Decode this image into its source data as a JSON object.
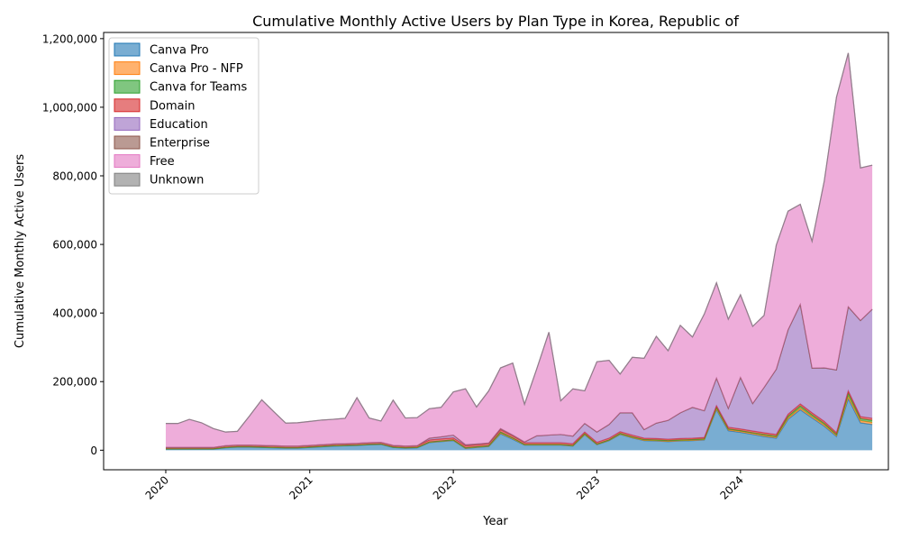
{
  "chart_data": {
    "type": "area",
    "stacked": true,
    "title": "Cumulative Monthly Active Users by Plan Type in Korea, Republic of",
    "xlabel": "Year",
    "ylabel": "Cumulative Monthly Active Users",
    "xlim": [
      "2019-07-27",
      "2025-01-11"
    ],
    "ylim": [
      -57000,
      1218000
    ],
    "x_ticks": [
      {
        "value": "2020-01-01",
        "label": "2020"
      },
      {
        "value": "2021-01-01",
        "label": "2021"
      },
      {
        "value": "2022-01-01",
        "label": "2022"
      },
      {
        "value": "2023-01-01",
        "label": "2023"
      },
      {
        "value": "2024-01-01",
        "label": "2024"
      }
    ],
    "y_ticks": [
      {
        "value": 0,
        "label": "0"
      },
      {
        "value": 200000,
        "label": "200,000"
      },
      {
        "value": 400000,
        "label": "400,000"
      },
      {
        "value": 600000,
        "label": "600,000"
      },
      {
        "value": 800000,
        "label": "800,000"
      },
      {
        "value": 1000000,
        "label": "1,000,000"
      },
      {
        "value": 1200000,
        "label": "1,200,000"
      }
    ],
    "legend_position": "upper-left",
    "grid": false,
    "fill_opacity": 0.6,
    "x": [
      "2020-01-01",
      "2020-02-01",
      "2020-03-01",
      "2020-04-01",
      "2020-05-01",
      "2020-06-01",
      "2020-07-01",
      "2020-08-01",
      "2020-09-01",
      "2020-10-01",
      "2020-11-01",
      "2020-12-01",
      "2021-01-01",
      "2021-02-01",
      "2021-03-01",
      "2021-04-01",
      "2021-05-01",
      "2021-06-01",
      "2021-07-01",
      "2021-08-01",
      "2021-09-01",
      "2021-10-01",
      "2021-11-01",
      "2021-12-01",
      "2022-01-01",
      "2022-02-01",
      "2022-03-01",
      "2022-04-01",
      "2022-05-01",
      "2022-06-01",
      "2022-07-01",
      "2022-08-01",
      "2022-09-01",
      "2022-10-01",
      "2022-11-01",
      "2022-12-01",
      "2023-01-01",
      "2023-02-01",
      "2023-03-01",
      "2023-04-01",
      "2023-05-01",
      "2023-06-01",
      "2023-07-01",
      "2023-08-01",
      "2023-09-01",
      "2023-10-01",
      "2023-11-01",
      "2023-12-01",
      "2024-01-01",
      "2024-02-01",
      "2024-03-01",
      "2024-04-01",
      "2024-05-01",
      "2024-06-01",
      "2024-07-01",
      "2024-08-01",
      "2024-09-01",
      "2024-10-01",
      "2024-11-01",
      "2024-12-01"
    ],
    "series": [
      {
        "name": "Canva Pro",
        "color": "#1f77b4",
        "values": [
          3000,
          3000,
          3000,
          3000,
          3000,
          7000,
          9000,
          9000,
          8000,
          7000,
          6000,
          6000,
          8000,
          10000,
          12000,
          13000,
          14000,
          16000,
          17000,
          8000,
          6000,
          7000,
          22000,
          25000,
          28000,
          5000,
          8000,
          11000,
          48000,
          32000,
          15000,
          15000,
          15000,
          15000,
          12000,
          45000,
          16000,
          28000,
          46000,
          36000,
          28000,
          27000,
          25000,
          27000,
          28000,
          30000,
          118000,
          57000,
          52000,
          46000,
          40000,
          35000,
          90000,
          118000,
          94000,
          70000,
          40000,
          150000,
          80000,
          75000
        ]
      },
      {
        "name": "Canva Pro - NFP",
        "color": "#ff7f0e",
        "values": [
          1000,
          1000,
          1000,
          1000,
          1000,
          1000,
          1000,
          1000,
          1000,
          1000,
          1000,
          1000,
          1000,
          1000,
          1000,
          1000,
          1000,
          1000,
          1000,
          1000,
          1000,
          1000,
          1000,
          1000,
          1000,
          1000,
          1000,
          1000,
          2000,
          2000,
          1000,
          1000,
          1000,
          1000,
          1000,
          1000,
          1000,
          1000,
          1000,
          1000,
          1000,
          1000,
          1000,
          1000,
          1000,
          1000,
          3000,
          3000,
          3000,
          3000,
          3000,
          3000,
          4000,
          5000,
          4000,
          4000,
          3000,
          7000,
          6000,
          6000
        ]
      },
      {
        "name": "Canva for Teams",
        "color": "#2ca02c",
        "values": [
          0,
          0,
          0,
          0,
          0,
          0,
          0,
          0,
          0,
          0,
          0,
          0,
          0,
          0,
          0,
          0,
          0,
          0,
          0,
          0,
          0,
          0,
          1000,
          1000,
          1000,
          1000,
          1000,
          1000,
          3000,
          2000,
          1000,
          1000,
          1000,
          1000,
          1000,
          2000,
          1000,
          1000,
          2000,
          2000,
          2000,
          2000,
          2000,
          2000,
          2000,
          2000,
          4000,
          2000,
          2000,
          2000,
          3000,
          3000,
          5000,
          6000,
          5000,
          4000,
          3000,
          9000,
          6000,
          6000
        ]
      },
      {
        "name": "Domain",
        "color": "#d62728",
        "values": [
          4000,
          4000,
          4000,
          4000,
          4000,
          5000,
          5000,
          5000,
          5000,
          5000,
          5000,
          5000,
          5000,
          5000,
          5000,
          5000,
          5000,
          5000,
          5000,
          5000,
          5000,
          5000,
          6000,
          6000,
          6000,
          6000,
          6000,
          6000,
          7000,
          6000,
          5000,
          5000,
          5000,
          5000,
          5000,
          5000,
          5000,
          5000,
          5000,
          5000,
          4000,
          4000,
          4000,
          4000,
          4000,
          4000,
          5000,
          5000,
          5000,
          5000,
          5000,
          5000,
          6000,
          6000,
          6000,
          6000,
          5000,
          7000,
          6000,
          6000
        ]
      },
      {
        "name": "Education",
        "color": "#9467bd",
        "values": [
          0,
          0,
          0,
          0,
          0,
          0,
          0,
          0,
          0,
          0,
          0,
          0,
          0,
          0,
          0,
          0,
          0,
          0,
          0,
          0,
          0,
          0,
          5000,
          6000,
          8000,
          3000,
          2000,
          2000,
          3000,
          2000,
          2000,
          20000,
          22000,
          24000,
          22000,
          25000,
          30000,
          40000,
          55000,
          65000,
          25000,
          45000,
          55000,
          75000,
          90000,
          78000,
          80000,
          55000,
          150000,
          80000,
          132000,
          190000,
          246000,
          290000,
          130000,
          156000,
          183000,
          245000,
          280000,
          318000
        ]
      },
      {
        "name": "Enterprise",
        "color": "#8c564b",
        "values": [
          0,
          0,
          0,
          0,
          0,
          0,
          0,
          0,
          0,
          0,
          0,
          0,
          0,
          0,
          0,
          0,
          0,
          0,
          0,
          0,
          0,
          0,
          0,
          0,
          0,
          0,
          0,
          0,
          0,
          0,
          0,
          0,
          0,
          0,
          0,
          0,
          0,
          0,
          0,
          0,
          0,
          0,
          0,
          0,
          0,
          0,
          0,
          0,
          0,
          0,
          0,
          0,
          0,
          0,
          0,
          0,
          0,
          0,
          0,
          0
        ]
      },
      {
        "name": "Free",
        "color": "#e377c2",
        "values": [
          70000,
          70000,
          82000,
          72000,
          55000,
          40000,
          40000,
          85000,
          133000,
          100000,
          67000,
          68000,
          70000,
          72000,
          72000,
          74000,
          133000,
          72000,
          62000,
          132000,
          82000,
          82000,
          86000,
          86000,
          126000,
          163000,
          108000,
          152000,
          177000,
          210000,
          110000,
          195000,
          300000,
          98000,
          138000,
          95000,
          205000,
          187000,
          113000,
          162000,
          208000,
          253000,
          203000,
          255000,
          205000,
          282000,
          278000,
          260000,
          241000,
          225000,
          210000,
          362000,
          346000,
          292000,
          370000,
          545000,
          795000,
          740000,
          445000,
          420000
        ]
      },
      {
        "name": "Unknown",
        "color": "#7f7f7f",
        "values": [
          0,
          0,
          0,
          0,
          0,
          0,
          0,
          0,
          0,
          0,
          0,
          0,
          0,
          0,
          0,
          0,
          0,
          0,
          0,
          0,
          0,
          0,
          0,
          0,
          0,
          0,
          0,
          0,
          0,
          0,
          0,
          0,
          0,
          0,
          0,
          0,
          0,
          0,
          0,
          0,
          0,
          0,
          0,
          0,
          0,
          0,
          0,
          0,
          0,
          0,
          0,
          0,
          0,
          0,
          0,
          0,
          0,
          0,
          0,
          0
        ]
      }
    ]
  }
}
